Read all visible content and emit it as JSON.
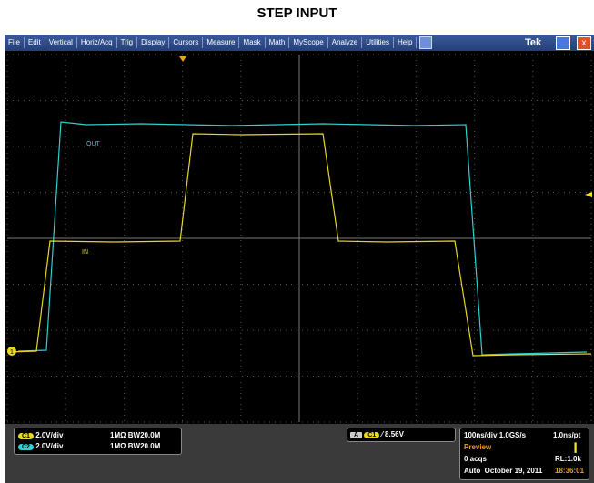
{
  "title": "STEP INPUT",
  "menu": [
    "File",
    "Edit",
    "Vertical",
    "Horiz/Acq",
    "Trig",
    "Display",
    "Cursors",
    "Measure",
    "Mask",
    "Math",
    "MyScope",
    "Analyze",
    "Utilities",
    "Help"
  ],
  "brand": "Tek",
  "traces": {
    "out": "OUT",
    "in": "IN",
    "marker": "1"
  },
  "channels": [
    {
      "name": "C1",
      "scale": "2.0V/div",
      "impedance": "1MΩ",
      "bandwidth": "BW20.0M"
    },
    {
      "name": "C2",
      "scale": "2.0V/div",
      "impedance": "1MΩ",
      "bandwidth": "BW20.0M"
    }
  ],
  "trigger": {
    "mode": "A",
    "source": "C1",
    "level": "8.56V"
  },
  "status": {
    "timebase": "100ns/div",
    "rate": "1.0GS/s",
    "resolution": "1.0ns/pt",
    "state": "Preview",
    "acqs": "0 acqs",
    "record": "RL:1.0k",
    "run": "Auto",
    "date": "October 19, 2011",
    "time": "18:36:01"
  }
}
